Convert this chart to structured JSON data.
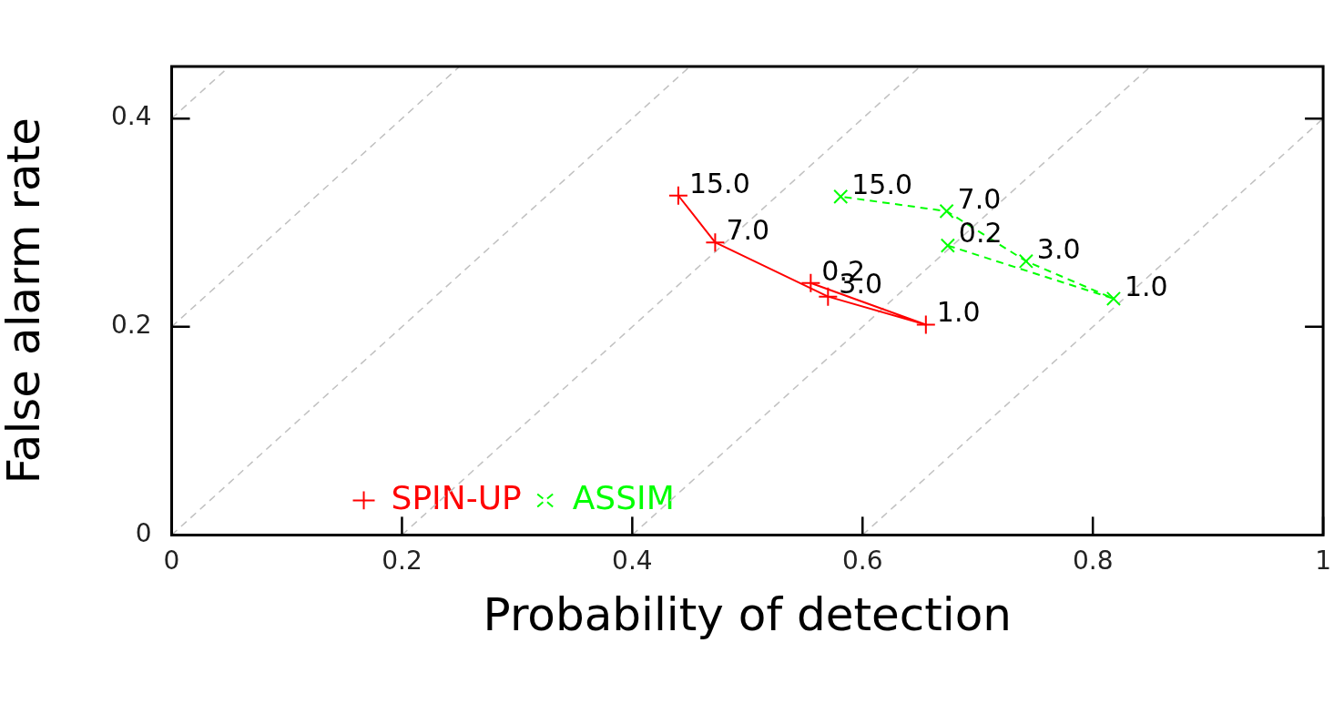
{
  "chart_data": {
    "type": "line",
    "xlabel": "Probability of detection",
    "ylabel": "False alarm rate",
    "xlim": [
      0,
      1
    ],
    "ylim": [
      0,
      0.45
    ],
    "xticks": [
      0,
      0.2,
      0.4,
      0.6,
      0.8,
      1
    ],
    "yticks": [
      0,
      0.2,
      0.4
    ],
    "grid": false,
    "legend": "bottom left",
    "series": [
      {
        "name": "SPIN-UP",
        "color": "#ff0000",
        "marker": "cross",
        "line_style": "solid",
        "x": [
          0.555,
          0.655,
          0.57,
          0.472,
          0.44
        ],
        "values": [
          0.242,
          0.202,
          0.229,
          0.281,
          0.326
        ]
      },
      {
        "name": "ASSIM",
        "color": "#00ff00",
        "marker": "x",
        "line_style": "dashed",
        "x": [
          0.674,
          0.818,
          0.742,
          0.673,
          0.581
        ],
        "values": [
          0.278,
          0.227,
          0.263,
          0.311,
          0.325
        ]
      },
      {
        "color": "#c0c0c0",
        "marker": "none",
        "line_style": "dashed",
        "x": [
          0,
          0.05
        ],
        "values": [
          0.4,
          0.45
        ]
      },
      {
        "color": "#c0c0c0",
        "marker": "none",
        "line_style": "dashed",
        "x": [
          0,
          0.25
        ],
        "values": [
          0.2,
          0.45
        ]
      },
      {
        "color": "#c0c0c0",
        "marker": "none",
        "line_style": "dashed",
        "x": [
          0,
          0.45
        ],
        "values": [
          0,
          0.45
        ]
      },
      {
        "color": "#c0c0c0",
        "marker": "none",
        "line_style": "dashed",
        "x": [
          0.2,
          0.65
        ],
        "values": [
          0,
          0.45
        ]
      },
      {
        "color": "#c0c0c0",
        "marker": "none",
        "line_style": "dashed",
        "x": [
          0.4,
          0.85
        ],
        "values": [
          0,
          0.45
        ]
      },
      {
        "color": "#c0c0c0",
        "marker": "none",
        "line_style": "dashed",
        "x": [
          0.6,
          1
        ],
        "values": [
          0,
          0.4
        ]
      }
    ],
    "annotations": [
      {
        "text": "0.2",
        "x": 0.555,
        "y": 0.242
      },
      {
        "text": "1.0",
        "x": 0.655,
        "y": 0.202
      },
      {
        "text": "3.0",
        "x": 0.57,
        "y": 0.229
      },
      {
        "text": "7.0",
        "x": 0.472,
        "y": 0.281
      },
      {
        "text": "15.0",
        "x": 0.44,
        "y": 0.326
      },
      {
        "text": "0.2",
        "x": 0.674,
        "y": 0.278
      },
      {
        "text": "1.0",
        "x": 0.818,
        "y": 0.227
      },
      {
        "text": "3.0",
        "x": 0.742,
        "y": 0.263
      },
      {
        "text": "7.0",
        "x": 0.673,
        "y": 0.311
      },
      {
        "text": "15.0",
        "x": 0.581,
        "y": 0.325
      }
    ]
  }
}
